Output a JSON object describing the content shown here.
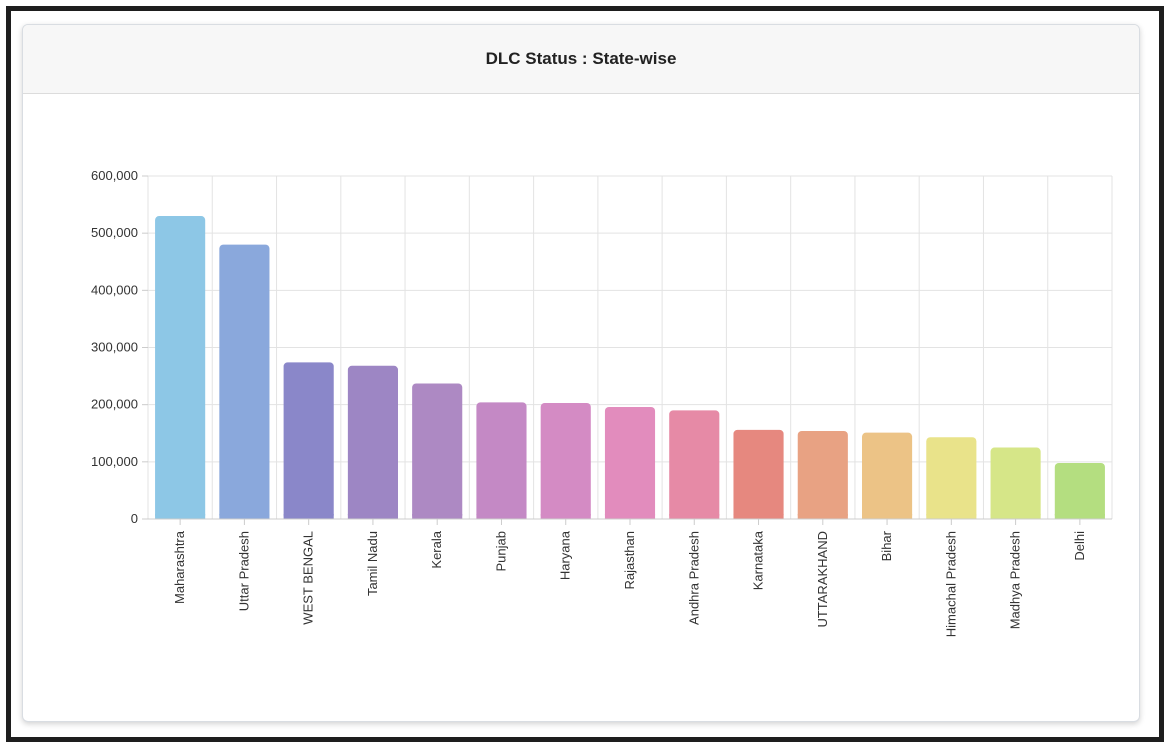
{
  "panel": {
    "title": "DLC Status : State-wise"
  },
  "chart_data": {
    "type": "bar",
    "title": "DLC Status : State-wise",
    "xlabel": "",
    "ylabel": "",
    "ylim": [
      0,
      600000
    ],
    "yticks": [
      0,
      100000,
      200000,
      300000,
      400000,
      500000,
      600000
    ],
    "ytick_labels": [
      "0",
      "100,000",
      "200,000",
      "300,000",
      "400,000",
      "500,000",
      "600,000"
    ],
    "grid": true,
    "legend": "none",
    "categories": [
      "Maharashtra",
      "Uttar Pradesh",
      "WEST BENGAL",
      "Tamil Nadu",
      "Kerala",
      "Punjab",
      "Haryana",
      "Rajasthan",
      "Andhra Pradesh",
      "Karnataka",
      "UTTARAKHAND",
      "Bihar",
      "Himachal Pradesh",
      "Madhya Pradesh",
      "Delhi"
    ],
    "values": [
      530000,
      480000,
      274000,
      268000,
      237000,
      204000,
      203000,
      196000,
      190000,
      156000,
      154000,
      151000,
      143000,
      125000,
      98000
    ],
    "colors": [
      "#8dc7e6",
      "#8aa8dc",
      "#8a87c9",
      "#9d86c4",
      "#ad89c3",
      "#c489c5",
      "#d48bc4",
      "#e28cbd",
      "#e68aa6",
      "#e6887f",
      "#e8a283",
      "#ecc386",
      "#e9e38a",
      "#d6e688",
      "#b4de80"
    ]
  }
}
